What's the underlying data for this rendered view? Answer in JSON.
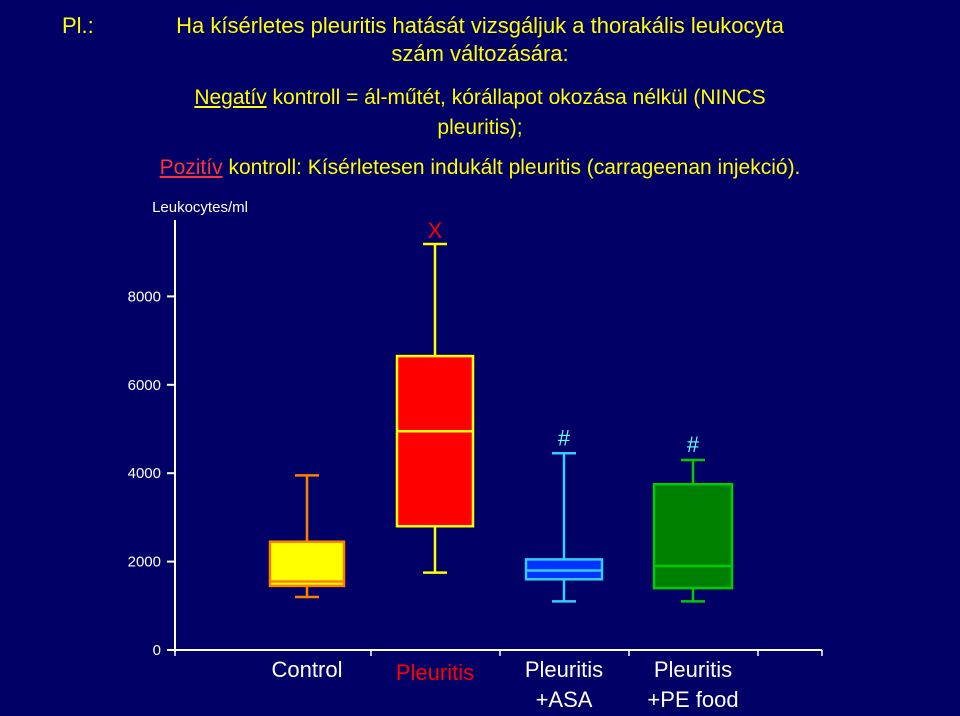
{
  "slide": {
    "title_prefix": "Pl.:",
    "title_line1": "Ha kísérletes pleuritis hatását vizsgáljuk a thorakális leukocyta",
    "title_line2": "szám változására:",
    "neg_word": "Negatív",
    "neg_text": " kontroll = ál-műtét, kórállapot okozása nélkül (NINCS",
    "neg_text2": "pleuritis);",
    "poz_word": "Pozitív",
    "poz_text": " kontroll: Kísérletesen indukált pleuritis (carrageenan injekció)."
  },
  "colors": {
    "background": "#000066",
    "title": "#ffff00",
    "accent_red": "#ff0000",
    "axis": "#ffffff",
    "significance": "#66ffff"
  },
  "chart_data": {
    "type": "boxplot",
    "ylabel": "Leukocytes/ml",
    "ylim": [
      0,
      9000
    ],
    "yticks": [
      0,
      2000,
      4000,
      6000,
      8000
    ],
    "ytick_labels": [
      "0",
      "2000",
      "4000",
      "6000",
      "8000"
    ],
    "categories": [
      "Control",
      "Pleuritis",
      "Pleuritis\n+ASA",
      "Pleuritis\n+PE food"
    ],
    "category_lines": [
      [
        "Control"
      ],
      [
        "Pleuritis"
      ],
      [
        "Pleuritis",
        "+ASA"
      ],
      [
        "Pleuritis",
        "+PE food"
      ]
    ],
    "boxes": [
      {
        "name": "Control",
        "whisker_low": 1200,
        "q1": 1450,
        "median": 1550,
        "q3": 2450,
        "whisker_high": 3950,
        "fill": "#ffff00",
        "stroke": "#ff8000",
        "marker": ""
      },
      {
        "name": "Pleuritis",
        "whisker_low": 1750,
        "q1": 2800,
        "median": 4950,
        "q3": 6650,
        "whisker_high": 9300,
        "fill": "#ff0000",
        "stroke": "#ffff00",
        "marker": "X"
      },
      {
        "name": "Pleuritis +ASA",
        "whisker_low": 1100,
        "q1": 1600,
        "median": 1800,
        "q3": 2050,
        "whisker_high": 4450,
        "fill": "#0033ff",
        "stroke": "#33ccff",
        "marker": "#"
      },
      {
        "name": "Pleuritis +PE food",
        "whisker_low": 1100,
        "q1": 1400,
        "median": 1900,
        "q3": 3750,
        "whisker_high": 4300,
        "fill": "#008000",
        "stroke": "#00cc00",
        "marker": "#"
      }
    ],
    "marker_colors": {
      "X": "#ff0000",
      "#": "#66ffff"
    },
    "label_colors": [
      "#ffffff",
      "#ff0000",
      "#ffffff",
      "#ffffff"
    ],
    "grid": false,
    "legend": "none"
  }
}
